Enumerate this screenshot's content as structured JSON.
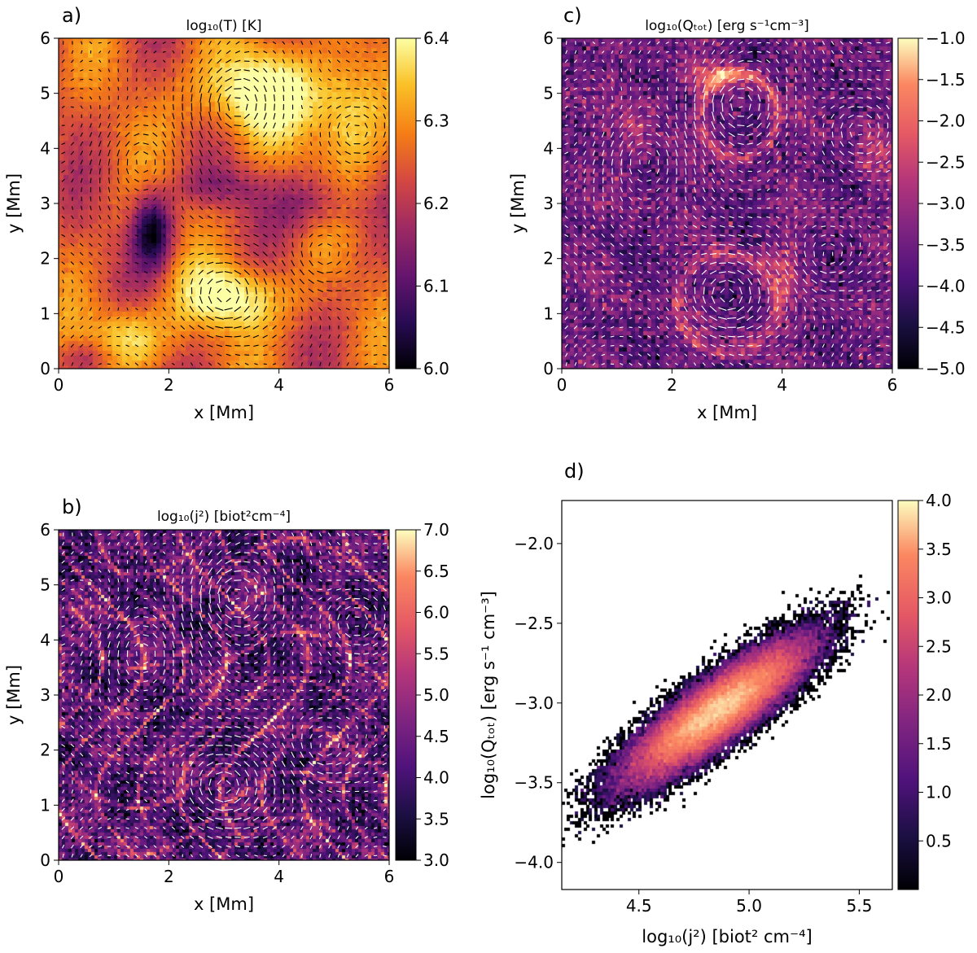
{
  "figure": {
    "panels": [
      {
        "id": "a",
        "panel_label": "a)",
        "title": "log₁₀(T) [K]",
        "xlabel": "x [Mm]",
        "ylabel": "y [Mm]",
        "colormap": "inferno",
        "arrow_color": "#000000"
      },
      {
        "id": "b",
        "panel_label": "b)",
        "title": "log₁₀(j²) [biot²cm⁻⁴]",
        "xlabel": "x [Mm]",
        "ylabel": "y [Mm]",
        "colormap": "magma",
        "arrow_color": "#ffffff"
      },
      {
        "id": "c",
        "panel_label": "c)",
        "title": "log₁₀(Qₜₒₜ) [erg s⁻¹cm⁻³]",
        "xlabel": "x [Mm]",
        "ylabel": "y [Mm]",
        "colormap": "magma",
        "arrow_color": "#ffffff"
      },
      {
        "id": "d",
        "panel_label": "d)",
        "title": "",
        "xlabel": "log₁₀(j²) [biot² cm⁻⁴]",
        "ylabel": "log₁₀(Qₜₒₜ) [erg s⁻¹ cm⁻³]",
        "colormap": "magma"
      }
    ]
  },
  "chart_data": [
    {
      "id": "a",
      "type": "heatmap",
      "title": "log₁₀(T) [K]",
      "xlabel": "x [Mm]",
      "ylabel": "y [Mm]",
      "xlim": [
        0,
        6
      ],
      "ylim": [
        0,
        6
      ],
      "xticks": [
        "0",
        "2",
        "4",
        "6"
      ],
      "yticks": [
        "0",
        "1",
        "2",
        "3",
        "4",
        "5",
        "6"
      ],
      "colorbar": {
        "min": 6.0,
        "max": 6.4,
        "ticks": [
          "6.0",
          "6.1",
          "6.2",
          "6.3",
          "6.4"
        ]
      },
      "overlay": "velocity arrows (black)"
    },
    {
      "id": "b",
      "type": "heatmap",
      "title": "log₁₀(j²) [biot²cm⁻⁴]",
      "xlabel": "x [Mm]",
      "ylabel": "y [Mm]",
      "xlim": [
        0,
        6
      ],
      "ylim": [
        0,
        6
      ],
      "xticks": [
        "0",
        "2",
        "4",
        "6"
      ],
      "yticks": [
        "0",
        "1",
        "2",
        "3",
        "4",
        "5",
        "6"
      ],
      "colorbar": {
        "min": 3.0,
        "max": 7.0,
        "ticks": [
          "3.0",
          "3.5",
          "4.0",
          "4.5",
          "5.0",
          "5.5",
          "6.0",
          "6.5",
          "7.0"
        ]
      },
      "overlay": "velocity arrows (white)"
    },
    {
      "id": "c",
      "type": "heatmap",
      "title": "log₁₀(Qₜₒₜ) [erg s⁻¹cm⁻³]",
      "xlabel": "x [Mm]",
      "ylabel": "y [Mm]",
      "xlim": [
        0,
        6
      ],
      "ylim": [
        0,
        6
      ],
      "xticks": [
        "0",
        "2",
        "4",
        "6"
      ],
      "yticks": [
        "0",
        "1",
        "2",
        "3",
        "4",
        "5",
        "6"
      ],
      "colorbar": {
        "min": -5.0,
        "max": -1.0,
        "ticks": [
          "−5.0",
          "−4.5",
          "−4.0",
          "−3.5",
          "−3.0",
          "−2.5",
          "−2.0",
          "−1.5",
          "−1.0"
        ]
      },
      "overlay": "velocity arrows (white)"
    },
    {
      "id": "d",
      "type": "heatmap",
      "title": "",
      "xlabel": "log₁₀(j²) [biot² cm⁻⁴]",
      "ylabel": "log₁₀(Qₜₒₜ) [erg s⁻¹ cm⁻³]",
      "xlim": [
        4.15,
        5.65
      ],
      "ylim": [
        -4.17,
        -1.73
      ],
      "xticks": [
        4.5,
        5.0,
        5.5
      ],
      "yticks": [
        -4.0,
        -3.5,
        -3.0,
        -2.5,
        -2.0
      ],
      "colorbar": {
        "min": 0,
        "max": 4.0,
        "ticks": [
          "0.5",
          "1.0",
          "1.5",
          "2.0",
          "2.5",
          "3.0",
          "3.5",
          "4.0"
        ]
      },
      "distribution": {
        "center_x": 4.86,
        "center_y": -3.05,
        "sigma_major": 0.28,
        "sigma_minor": 0.075,
        "slope": 1.08,
        "peak_log10_count": 3.9
      }
    }
  ]
}
